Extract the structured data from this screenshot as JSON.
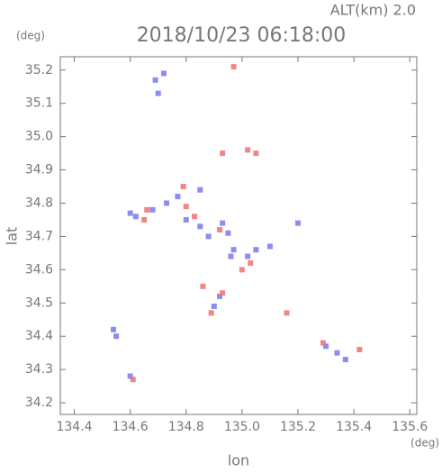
{
  "chart_data": {
    "type": "scatter",
    "title": "2018/10/23 06:18:00",
    "subtitle": "ALT(km) 2.0",
    "x_label": "lon",
    "y_label": "lat",
    "x_unit": "(deg)",
    "y_unit": "(deg)",
    "xlim": [
      134.35,
      135.625
    ],
    "ylim": [
      34.165,
      35.24
    ],
    "xticks": [
      {
        "value": 134.4,
        "label": "134.4"
      },
      {
        "value": 134.6,
        "label": "134.6"
      },
      {
        "value": 134.8,
        "label": "134.8"
      },
      {
        "value": 135.0,
        "label": "135.0"
      },
      {
        "value": 135.2,
        "label": "135.2"
      },
      {
        "value": 135.4,
        "label": "135.4"
      },
      {
        "value": 135.6,
        "label": "135.6"
      }
    ],
    "yticks": [
      {
        "value": 34.2,
        "label": "34.2"
      },
      34.3,
      34.4,
      34.5,
      34.6,
      34.7,
      34.8,
      34.9,
      {
        "value": 35.0,
        "label": "35.0"
      },
      35.1,
      35.2
    ],
    "series": [
      {
        "color": "#7878ee",
        "x": [
          134.69,
          134.7,
          134.72,
          134.6,
          134.62,
          134.68,
          134.73,
          134.77,
          134.8,
          134.85,
          134.88,
          134.93,
          134.95,
          134.97,
          135.02,
          135.05,
          134.92,
          134.9,
          134.54,
          134.55,
          134.6,
          135.2,
          135.3,
          135.34,
          135.37,
          134.96,
          135.1,
          134.85
        ],
        "values": [
          35.17,
          35.13,
          35.19,
          34.77,
          34.76,
          34.78,
          34.8,
          34.82,
          34.75,
          34.73,
          34.7,
          34.74,
          34.71,
          34.66,
          34.64,
          34.66,
          34.52,
          34.49,
          34.42,
          34.4,
          34.28,
          34.74,
          34.37,
          34.35,
          34.33,
          34.64,
          34.67,
          34.84
        ]
      },
      {
        "color": "#f07070",
        "x": [
          134.97,
          134.93,
          135.05,
          134.66,
          134.65,
          134.8,
          134.83,
          134.79,
          134.92,
          135.03,
          135.0,
          134.89,
          134.93,
          134.61,
          135.16,
          135.42,
          135.29,
          134.86,
          135.02
        ],
        "values": [
          35.21,
          34.95,
          34.95,
          34.78,
          34.75,
          34.79,
          34.76,
          34.85,
          34.72,
          34.62,
          34.6,
          34.47,
          34.53,
          34.27,
          34.47,
          34.36,
          34.38,
          34.55,
          34.96
        ]
      }
    ]
  }
}
